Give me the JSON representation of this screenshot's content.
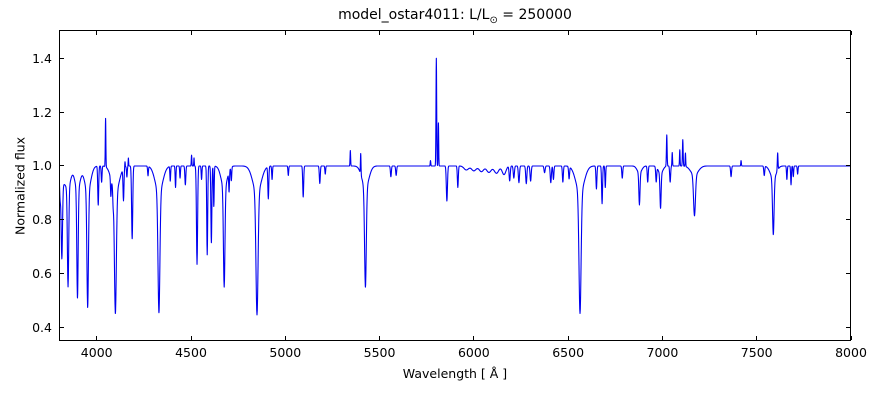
{
  "title": {
    "main": "model_ostar4011: L/L",
    "sub": "⊙",
    "tail": " = 250000"
  },
  "chart_data": {
    "type": "line",
    "title": "model_ostar4011: L/L⊙ = 250000",
    "xlabel": "Wavelength [ Å ]",
    "ylabel": "Normalized flux",
    "xlim": [
      3800,
      8000
    ],
    "ylim": [
      0.35,
      1.505
    ],
    "xticks": [
      4000,
      4500,
      5000,
      5500,
      6000,
      6500,
      7000,
      7500,
      8000
    ],
    "xtick_labels": [
      "4000",
      "4500",
      "5000",
      "5500",
      "6000",
      "6500",
      "7000",
      "7500",
      "8000"
    ],
    "yticks": [
      0.4,
      0.6,
      0.8,
      1.0,
      1.2,
      1.4
    ],
    "ytick_labels": [
      "0.4",
      "0.6",
      "0.8",
      "1.0",
      "1.2",
      "1.4"
    ],
    "grid": false,
    "legend": null,
    "line_color": "#0000f0",
    "background_color": "#ffffff",
    "continuum_flux": 1.0,
    "absorption_lines_format": [
      "wavelength_A",
      "min_flux",
      "sigma_A",
      "has_wings"
    ],
    "absorption_lines": [
      [
        3806,
        0.93,
        2.5,
        0
      ],
      [
        3815,
        0.66,
        3.5,
        1
      ],
      [
        3848,
        0.555,
        3.5,
        1
      ],
      [
        3898,
        0.51,
        3.5,
        1
      ],
      [
        3952,
        0.475,
        4,
        1
      ],
      [
        4008,
        0.855,
        2.5,
        0
      ],
      [
        4026,
        0.94,
        2.2,
        0
      ],
      [
        4075,
        0.935,
        2,
        0
      ],
      [
        4087,
        0.95,
        2,
        0
      ],
      [
        4099,
        0.452,
        5,
        1
      ],
      [
        4142,
        0.88,
        2.5,
        0
      ],
      [
        4160,
        0.96,
        2,
        0
      ],
      [
        4188,
        0.73,
        3,
        0
      ],
      [
        4272,
        0.965,
        2,
        0
      ],
      [
        4330,
        0.455,
        5,
        1
      ],
      [
        4390,
        0.945,
        2,
        0
      ],
      [
        4418,
        0.92,
        2,
        0
      ],
      [
        4442,
        0.955,
        2,
        0
      ],
      [
        4470,
        0.93,
        2.5,
        0
      ],
      [
        4532,
        0.635,
        3,
        0
      ],
      [
        4556,
        0.95,
        2,
        0
      ],
      [
        4586,
        0.67,
        2.5,
        0
      ],
      [
        4608,
        0.715,
        2.5,
        0
      ],
      [
        4621,
        0.85,
        2,
        0
      ],
      [
        4676,
        0.55,
        4,
        1
      ],
      [
        4702,
        0.925,
        2,
        0
      ],
      [
        4714,
        0.95,
        2,
        0
      ],
      [
        4850,
        0.447,
        5.5,
        1
      ],
      [
        4910,
        0.88,
        2.5,
        0
      ],
      [
        4930,
        0.95,
        2,
        0
      ],
      [
        5016,
        0.965,
        2,
        0
      ],
      [
        5095,
        0.885,
        2.5,
        0
      ],
      [
        5183,
        0.935,
        2.5,
        0
      ],
      [
        5212,
        0.97,
        2,
        0
      ],
      [
        5425,
        0.55,
        4.5,
        1
      ],
      [
        5560,
        0.96,
        2.5,
        0
      ],
      [
        5588,
        0.965,
        2.5,
        0
      ],
      [
        5857,
        0.87,
        3,
        0
      ],
      [
        5915,
        0.92,
        2.5,
        0
      ],
      [
        5960,
        0.985,
        12,
        0
      ],
      [
        6000,
        0.982,
        12,
        0
      ],
      [
        6040,
        0.979,
        12,
        0
      ],
      [
        6080,
        0.976,
        12,
        0
      ],
      [
        6120,
        0.973,
        12,
        0
      ],
      [
        6160,
        0.968,
        10,
        0
      ],
      [
        6190,
        0.945,
        3,
        0
      ],
      [
        6212,
        0.955,
        3,
        0
      ],
      [
        6239,
        0.938,
        3,
        0
      ],
      [
        6278,
        0.934,
        3,
        0
      ],
      [
        6301,
        0.944,
        3,
        0
      ],
      [
        6375,
        0.975,
        3,
        0
      ],
      [
        6408,
        0.938,
        3,
        0
      ],
      [
        6422,
        0.95,
        2.5,
        0
      ],
      [
        6472,
        0.94,
        2.5,
        0
      ],
      [
        6505,
        0.955,
        2.5,
        0
      ],
      [
        6563,
        0.452,
        5.5,
        1
      ],
      [
        6650,
        0.915,
        2.5,
        0
      ],
      [
        6680,
        0.86,
        2.5,
        0
      ],
      [
        6697,
        0.92,
        2,
        0
      ],
      [
        6787,
        0.955,
        2.5,
        0
      ],
      [
        6878,
        0.855,
        3,
        1
      ],
      [
        6922,
        0.94,
        2.5,
        0
      ],
      [
        6967,
        0.945,
        2.5,
        0
      ],
      [
        6990,
        0.843,
        3,
        1
      ],
      [
        7041,
        0.94,
        2.5,
        0
      ],
      [
        7170,
        0.815,
        5,
        1
      ],
      [
        7364,
        0.96,
        2.5,
        0
      ],
      [
        7540,
        0.965,
        2.5,
        0
      ],
      [
        7588,
        0.745,
        4,
        1
      ],
      [
        7660,
        0.95,
        2,
        0
      ],
      [
        7682,
        0.93,
        2,
        0
      ],
      [
        7694,
        0.96,
        2,
        0
      ],
      [
        7717,
        0.97,
        2,
        0
      ]
    ],
    "emission_lines_format": [
      "wavelength_A",
      "peak_flux",
      "sigma_A"
    ],
    "emission_lines": [
      [
        4047,
        1.18,
        1.5
      ],
      [
        4150,
        1.02,
        1.2
      ],
      [
        4168,
        1.03,
        1.2
      ],
      [
        4503,
        1.04,
        1.5
      ],
      [
        4516,
        1.03,
        1.2
      ],
      [
        5345,
        1.057,
        1.5
      ],
      [
        5400,
        1.077,
        1.5
      ],
      [
        5770,
        1.02,
        1.5
      ],
      [
        5801,
        1.4,
        1.8
      ],
      [
        5812,
        1.16,
        1.5
      ],
      [
        7023,
        1.116,
        1.8
      ],
      [
        7052,
        1.05,
        1.5
      ],
      [
        7092,
        1.06,
        1.5
      ],
      [
        7108,
        1.098,
        1.8
      ],
      [
        7122,
        1.05,
        1.5
      ],
      [
        7417,
        1.02,
        1.5
      ],
      [
        7611,
        1.065,
        1.8
      ]
    ]
  }
}
